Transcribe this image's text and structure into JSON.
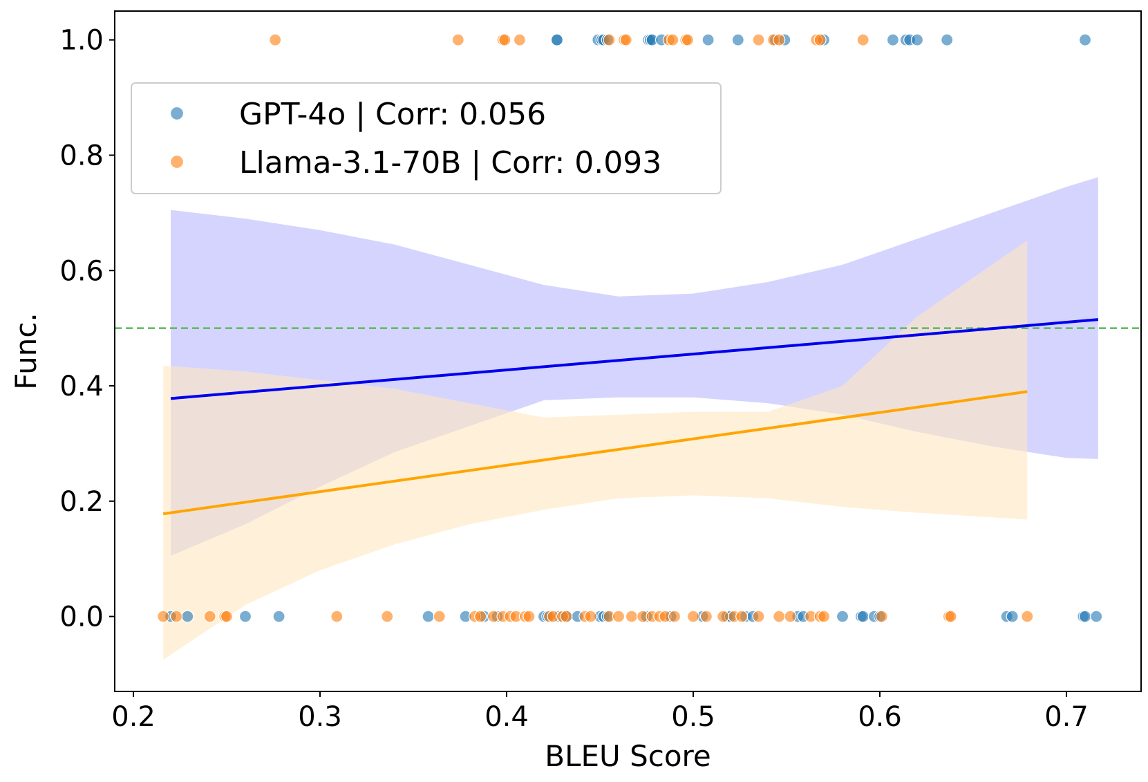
{
  "chart_data": {
    "type": "scatter",
    "xlabel": "BLEU Score",
    "ylabel": "Func.",
    "xlim": [
      0.19,
      0.74
    ],
    "ylim": [
      -0.13,
      1.05
    ],
    "xticks": [
      0.2,
      0.3,
      0.4,
      0.5,
      0.6,
      0.7
    ],
    "xtick_labels": [
      "0.2",
      "0.3",
      "0.4",
      "0.5",
      "0.6",
      "0.7"
    ],
    "yticks": [
      0.0,
      0.2,
      0.4,
      0.6,
      0.8,
      1.0
    ],
    "ytick_labels": [
      "0.0",
      "0.2",
      "0.4",
      "0.6",
      "0.8",
      "1.0"
    ],
    "reference_line": {
      "y": 0.5,
      "color": "#5cb85c",
      "style": "dashed"
    },
    "legend_position": "upper-left",
    "series": [
      {
        "name": "GPT-4o",
        "legend_label": "GPT-4o | Corr: 0.056",
        "marker_color": "#1f77b4",
        "line_color": "#0000ee",
        "band_color": "#c5c5ff",
        "points_y1": [
          0.427,
          0.427,
          0.449,
          0.451,
          0.452,
          0.454,
          0.476,
          0.477,
          0.478,
          0.483,
          0.508,
          0.524,
          0.544,
          0.549,
          0.57,
          0.607,
          0.614,
          0.616,
          0.62,
          0.636,
          0.71
        ],
        "points_y0": [
          0.22,
          0.229,
          0.26,
          0.278,
          0.358,
          0.378,
          0.388,
          0.395,
          0.42,
          0.422,
          0.428,
          0.432,
          0.438,
          0.45,
          0.452,
          0.454,
          0.475,
          0.488,
          0.505,
          0.518,
          0.52,
          0.528,
          0.532,
          0.556,
          0.559,
          0.58,
          0.59,
          0.591,
          0.597,
          0.6,
          0.668,
          0.671,
          0.709,
          0.71,
          0.716
        ],
        "fit": {
          "x": [
            0.22,
            0.717
          ],
          "y": [
            0.378,
            0.515
          ]
        },
        "ci": {
          "x": [
            0.22,
            0.26,
            0.3,
            0.34,
            0.38,
            0.42,
            0.46,
            0.5,
            0.54,
            0.58,
            0.62,
            0.66,
            0.7,
            0.717
          ],
          "upper": [
            0.705,
            0.69,
            0.67,
            0.645,
            0.61,
            0.575,
            0.555,
            0.56,
            0.58,
            0.61,
            0.655,
            0.7,
            0.745,
            0.762
          ],
          "lower": [
            0.105,
            0.16,
            0.225,
            0.285,
            0.33,
            0.375,
            0.38,
            0.38,
            0.37,
            0.35,
            0.32,
            0.295,
            0.275,
            0.273
          ]
        }
      },
      {
        "name": "Llama-3.1-70B",
        "legend_label": "Llama-3.1-70B | Corr: 0.093",
        "marker_color": "#ff7f0e",
        "line_color": "#ffa500",
        "band_color": "#ffe8c0",
        "points_y1": [
          0.276,
          0.374,
          0.398,
          0.399,
          0.407,
          0.455,
          0.463,
          0.464,
          0.487,
          0.489,
          0.496,
          0.497,
          0.535,
          0.543,
          0.546,
          0.566,
          0.568,
          0.591
        ],
        "points_y0": [
          0.216,
          0.223,
          0.241,
          0.249,
          0.25,
          0.309,
          0.336,
          0.364,
          0.383,
          0.386,
          0.393,
          0.398,
          0.402,
          0.405,
          0.41,
          0.412,
          0.423,
          0.425,
          0.43,
          0.432,
          0.442,
          0.445,
          0.455,
          0.46,
          0.467,
          0.473,
          0.478,
          0.482,
          0.485,
          0.49,
          0.5,
          0.507,
          0.516,
          0.522,
          0.526,
          0.535,
          0.546,
          0.552,
          0.563,
          0.568,
          0.57,
          0.601,
          0.637,
          0.638,
          0.679
        ],
        "fit": {
          "x": [
            0.216,
            0.679
          ],
          "y": [
            0.178,
            0.39
          ]
        },
        "ci": {
          "x": [
            0.216,
            0.26,
            0.3,
            0.34,
            0.38,
            0.42,
            0.46,
            0.5,
            0.54,
            0.58,
            0.62,
            0.66,
            0.679
          ],
          "upper": [
            0.435,
            0.425,
            0.41,
            0.395,
            0.37,
            0.345,
            0.35,
            0.355,
            0.355,
            0.4,
            0.52,
            0.61,
            0.652
          ],
          "lower": [
            -0.075,
            0.02,
            0.08,
            0.125,
            0.16,
            0.185,
            0.205,
            0.21,
            0.205,
            0.19,
            0.18,
            0.172,
            0.168
          ]
        }
      }
    ]
  }
}
